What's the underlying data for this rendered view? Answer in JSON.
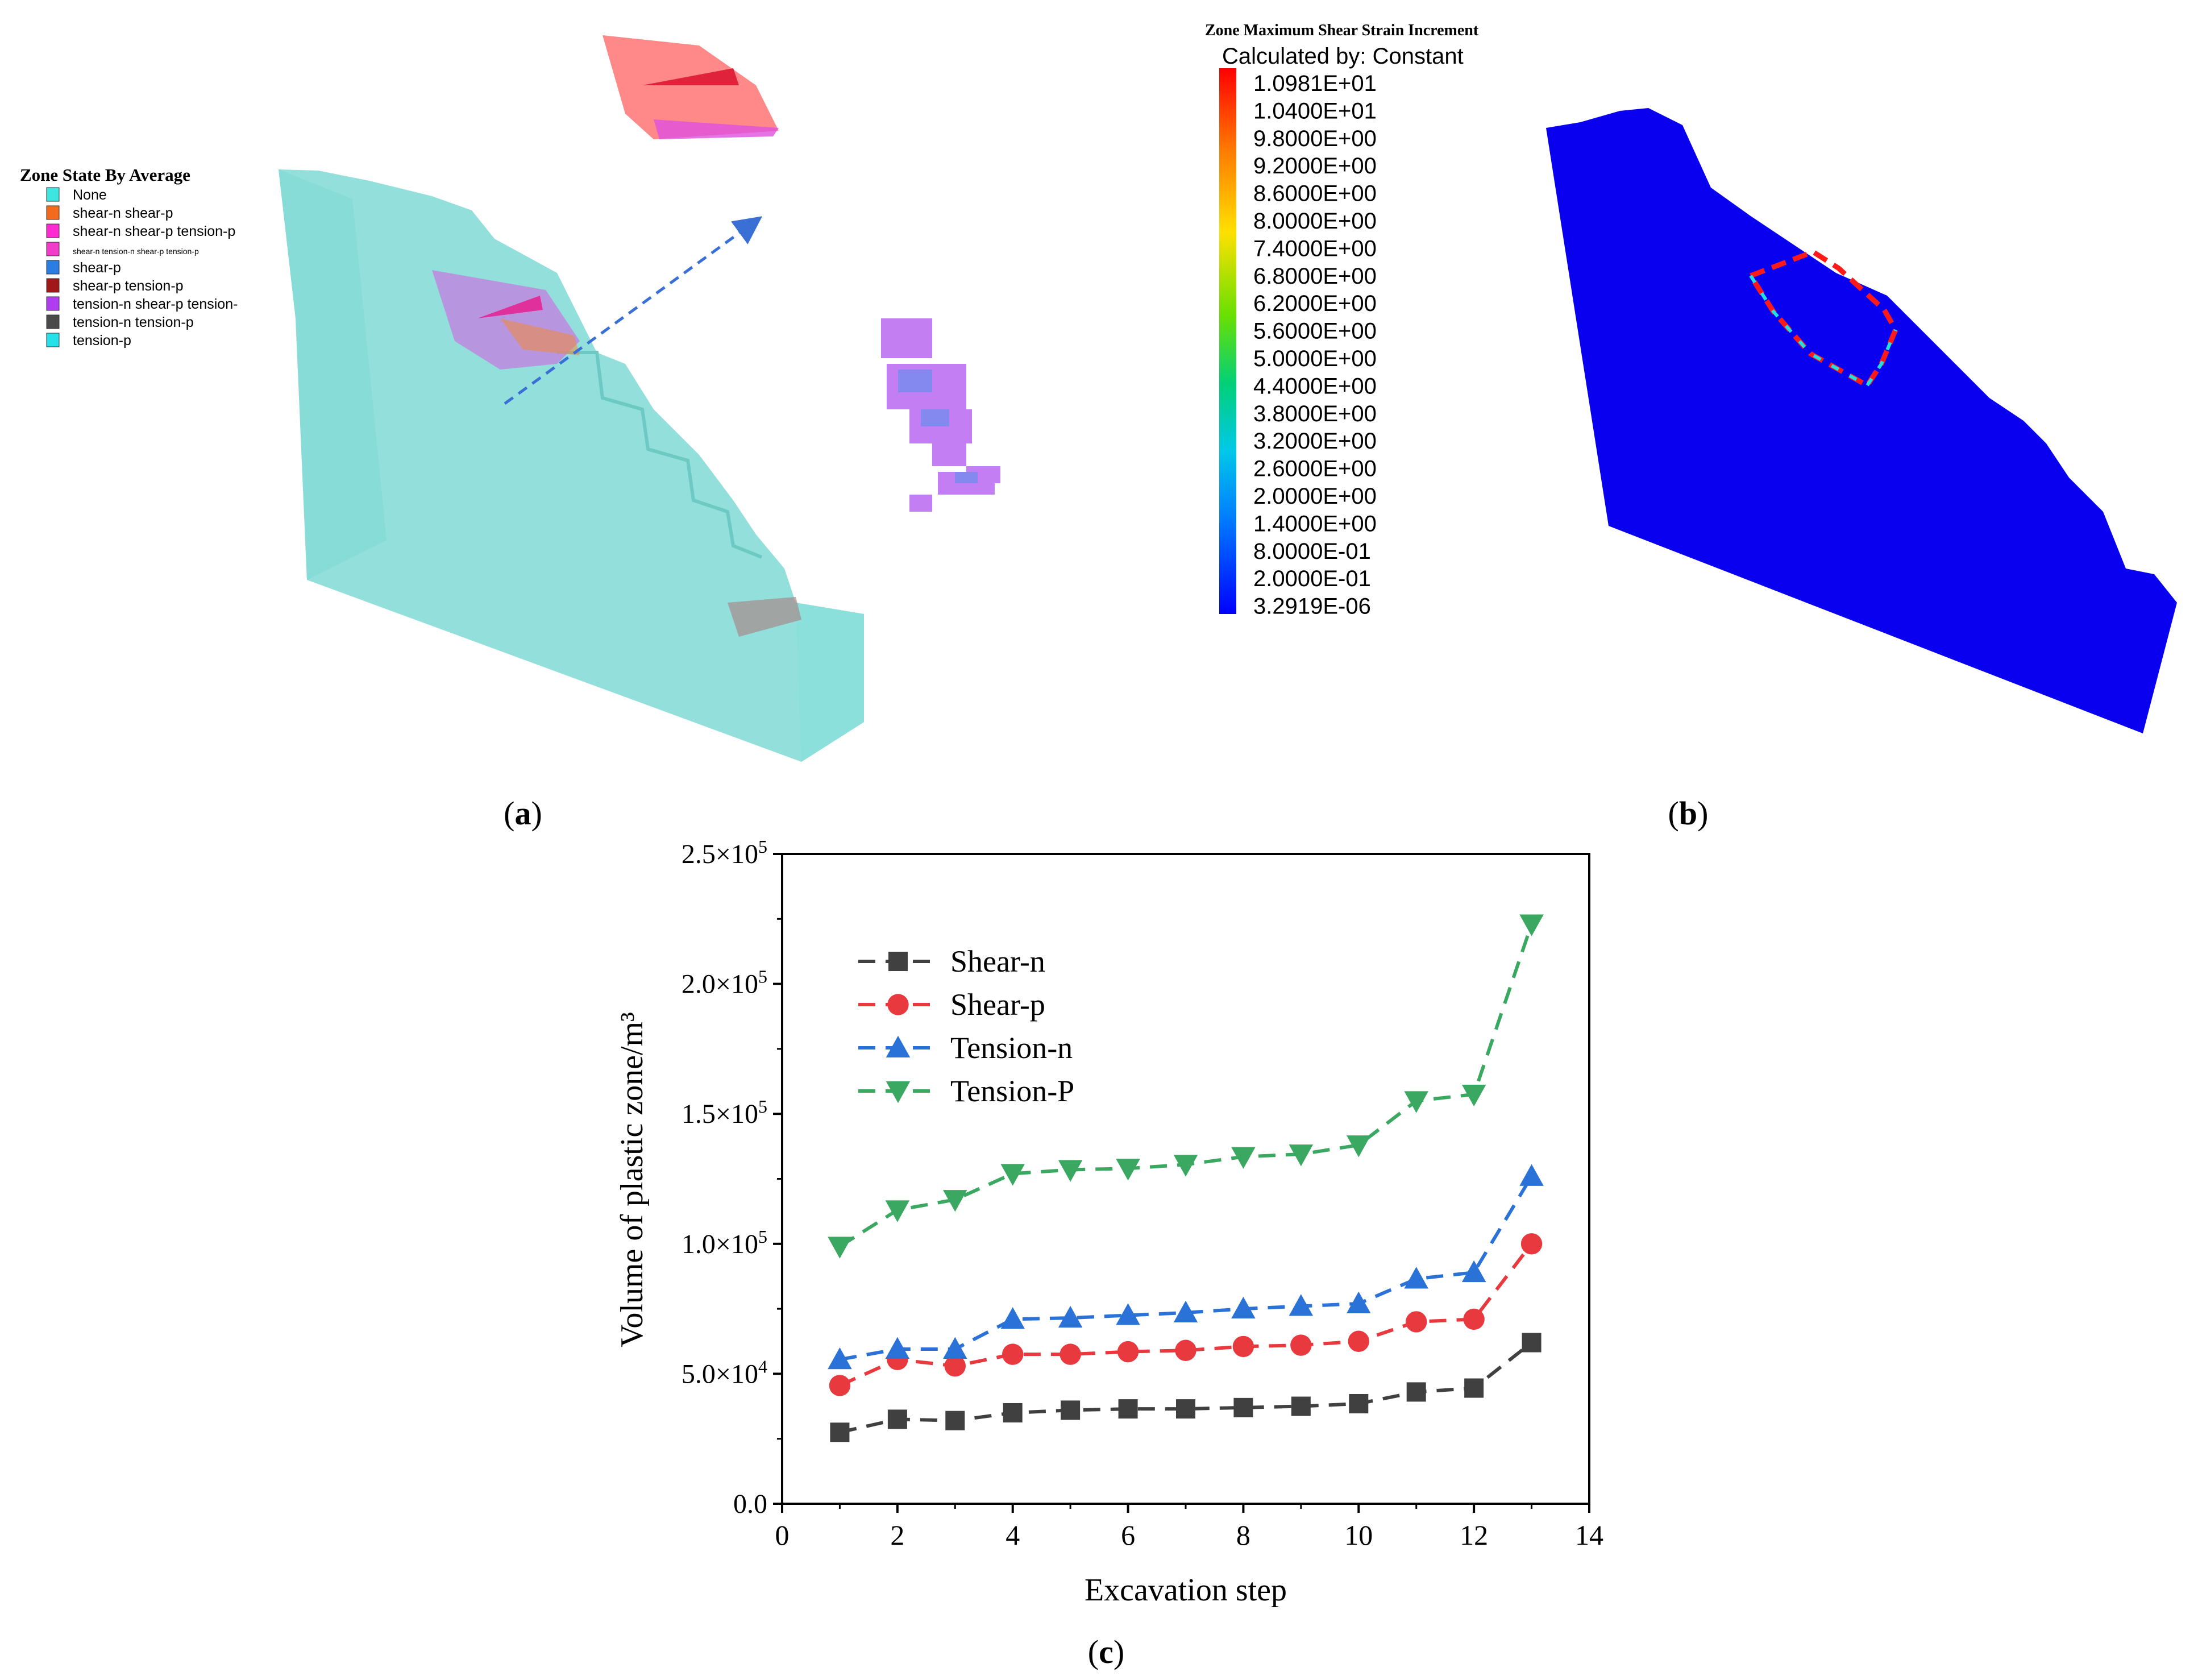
{
  "panel_a": {
    "caption": "(a)",
    "caption_letter": "a",
    "legend": {
      "title": "Zone State By Average",
      "items": [
        {
          "label": "None",
          "color": "#3fe6e0"
        },
        {
          "label": "shear-n shear-p",
          "color": "#f26a1b"
        },
        {
          "label": "shear-n shear-p tension-p",
          "color": "#ff2bd1"
        },
        {
          "label": "shear-n tension-n shear-p tension-p",
          "color": "#f03cc8"
        },
        {
          "label": "shear-p",
          "color": "#2a7de1"
        },
        {
          "label": "shear-p tension-p",
          "color": "#a01818"
        },
        {
          "label": "tension-n shear-p tension-",
          "color": "#b03cf0"
        },
        {
          "label": "tension-n tension-p",
          "color": "#4a4a4a"
        },
        {
          "label": "tension-p",
          "color": "#27e0e8"
        }
      ]
    }
  },
  "panel_b": {
    "caption": "(b)",
    "caption_letter": "b",
    "colorbar": {
      "title": "Zone Maximum Shear Strain Increment",
      "subtitle": "Calculated by: Constant",
      "ticks": [
        "1.0981E+01",
        "1.0400E+01",
        "9.8000E+00",
        "9.2000E+00",
        "8.6000E+00",
        "8.0000E+00",
        "7.4000E+00",
        "6.8000E+00",
        "6.2000E+00",
        "5.6000E+00",
        "5.0000E+00",
        "4.4000E+00",
        "3.8000E+00",
        "3.2000E+00",
        "2.6000E+00",
        "2.0000E+00",
        "1.4000E+00",
        "8.0000E-01",
        "2.0000E-01",
        "3.2919E-06"
      ]
    }
  },
  "panel_c": {
    "caption": "(c)",
    "caption_letter": "c"
  },
  "chart_data": {
    "type": "line",
    "xlabel": "Excavation step",
    "ylabel": "Volume of plastic zone/m³",
    "xlim": [
      0,
      14
    ],
    "ylim": [
      0,
      250000
    ],
    "xticks": [
      "0",
      "2",
      "4",
      "6",
      "8",
      "10",
      "12",
      "14"
    ],
    "yticks": [
      {
        "mant": "0.0",
        "exp": ""
      },
      {
        "mant": "5.0×10",
        "exp": "4"
      },
      {
        "mant": "1.0×10",
        "exp": "5"
      },
      {
        "mant": "1.5×10",
        "exp": "5"
      },
      {
        "mant": "2.0×10",
        "exp": "5"
      },
      {
        "mant": "2.5×10",
        "exp": "5"
      }
    ],
    "grid": false,
    "legend_position": "top-left",
    "x": [
      1,
      2,
      3,
      4,
      5,
      6,
      7,
      8,
      9,
      10,
      11,
      12,
      13
    ],
    "series": [
      {
        "name": "Shear-n",
        "marker": "square",
        "color": "#404040",
        "values": [
          27500,
          32500,
          32000,
          35000,
          36000,
          36500,
          36500,
          37000,
          37500,
          38500,
          43000,
          44500,
          62000
        ]
      },
      {
        "name": "Shear-p",
        "marker": "circle",
        "color": "#e8393f",
        "values": [
          45500,
          55500,
          53000,
          57500,
          57500,
          58500,
          59000,
          60500,
          61000,
          62500,
          70000,
          71000,
          100000
        ]
      },
      {
        "name": "Tension-n",
        "marker": "triangle-up",
        "color": "#2a72d8",
        "values": [
          55500,
          59500,
          59500,
          71000,
          71500,
          72500,
          73500,
          75000,
          76000,
          77000,
          86500,
          89000,
          126000
        ]
      },
      {
        "name": "Tension-P",
        "marker": "triangle-down",
        "color": "#3aa860",
        "values": [
          99000,
          113000,
          117000,
          127000,
          128500,
          129000,
          130500,
          133500,
          134500,
          138000,
          155000,
          157500,
          223000
        ]
      }
    ]
  }
}
